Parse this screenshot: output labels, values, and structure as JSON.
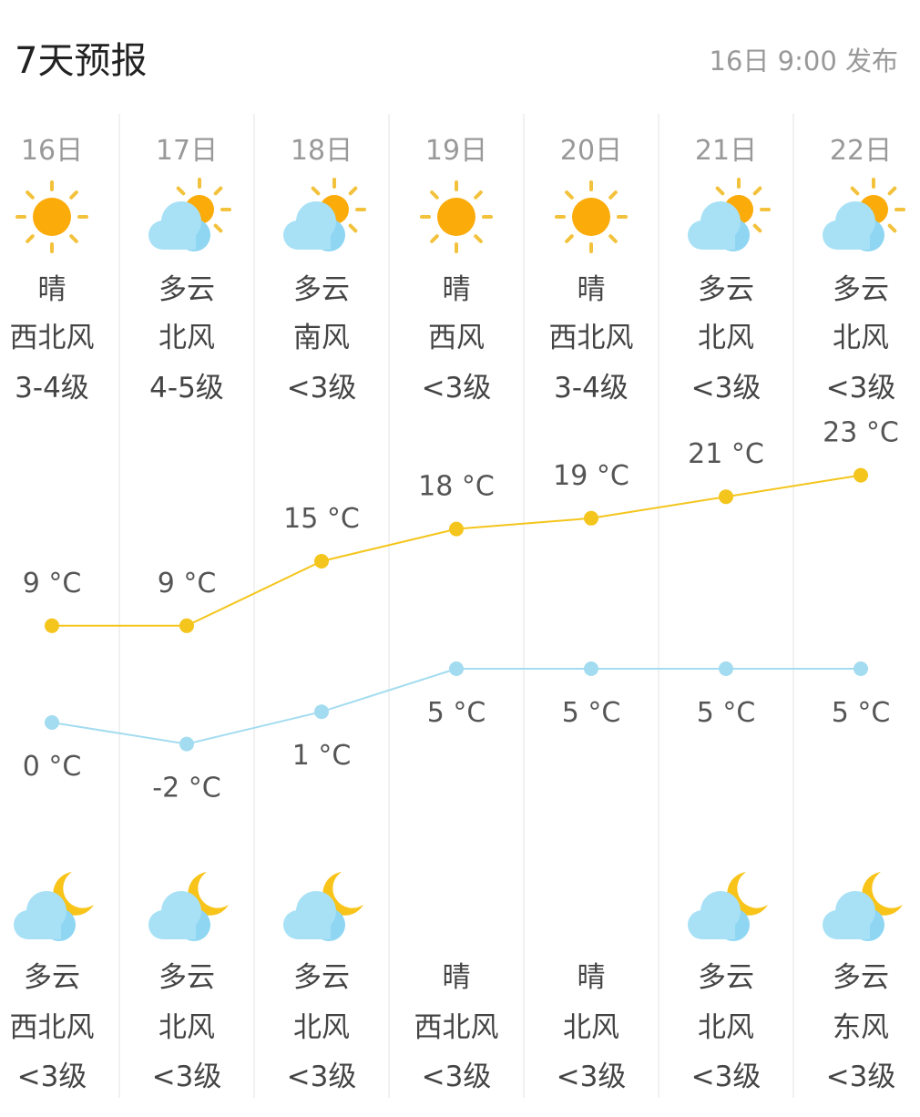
{
  "header": {
    "title": "7天预报",
    "published": "16日 9:00 发布"
  },
  "colors": {
    "high": "#f4c51c",
    "low": "#a3dcf0",
    "sun": "#fbab0a",
    "ray": "#f3c23c",
    "cloud": "#a8e1f6",
    "cloud_dark": "#8fd6f2",
    "moon": "#f8c41a"
  },
  "days": [
    {
      "date": "16日",
      "day_icon": "sun-icon",
      "day_weather": "晴",
      "day_wind": "西北风",
      "day_level": "3-4级",
      "high": "9 °C",
      "low": "0 °C",
      "night_icon": "cloud-moon-icon",
      "night_weather": "多云",
      "night_wind": "西北风",
      "night_level": "<3级"
    },
    {
      "date": "17日",
      "day_icon": "cloud-sun-icon",
      "day_weather": "多云",
      "day_wind": "北风",
      "day_level": "4-5级",
      "high": "9 °C",
      "low": "-2 °C",
      "night_icon": "cloud-moon-icon",
      "night_weather": "多云",
      "night_wind": "北风",
      "night_level": "<3级"
    },
    {
      "date": "18日",
      "day_icon": "cloud-sun-icon",
      "day_weather": "多云",
      "day_wind": "南风",
      "day_level": "<3级",
      "high": "15 °C",
      "low": "1 °C",
      "night_icon": "cloud-moon-icon",
      "night_weather": "多云",
      "night_wind": "北风",
      "night_level": "<3级"
    },
    {
      "date": "19日",
      "day_icon": "sun-icon",
      "day_weather": "晴",
      "day_wind": "西风",
      "day_level": "<3级",
      "high": "18 °C",
      "low": "5 °C",
      "night_icon": "moon-icon",
      "night_weather": "晴",
      "night_wind": "西北风",
      "night_level": "<3级"
    },
    {
      "date": "20日",
      "day_icon": "sun-icon",
      "day_weather": "晴",
      "day_wind": "西北风",
      "day_level": "3-4级",
      "high": "19 °C",
      "low": "5 °C",
      "night_icon": "moon-icon",
      "night_weather": "晴",
      "night_wind": "北风",
      "night_level": "<3级"
    },
    {
      "date": "21日",
      "day_icon": "cloud-sun-icon",
      "day_weather": "多云",
      "day_wind": "北风",
      "day_level": "<3级",
      "high": "21 °C",
      "low": "5 °C",
      "night_icon": "cloud-moon-icon",
      "night_weather": "多云",
      "night_wind": "北风",
      "night_level": "<3级"
    },
    {
      "date": "22日",
      "day_icon": "cloud-sun-icon",
      "day_weather": "多云",
      "day_wind": "北风",
      "day_level": "<3级",
      "high": "23 °C",
      "low": "5 °C",
      "night_icon": "cloud-moon-icon",
      "night_weather": "多云",
      "night_wind": "东风",
      "night_level": "<3级"
    }
  ],
  "chart_data": {
    "type": "line",
    "categories": [
      "16日",
      "17日",
      "18日",
      "19日",
      "20日",
      "21日",
      "22日"
    ],
    "series": [
      {
        "values": [
          9,
          9,
          15,
          18,
          19,
          21,
          23
        ]
      },
      {
        "values": [
          0,
          -2,
          1,
          5,
          5,
          5,
          5
        ]
      }
    ],
    "unit": "°C"
  }
}
